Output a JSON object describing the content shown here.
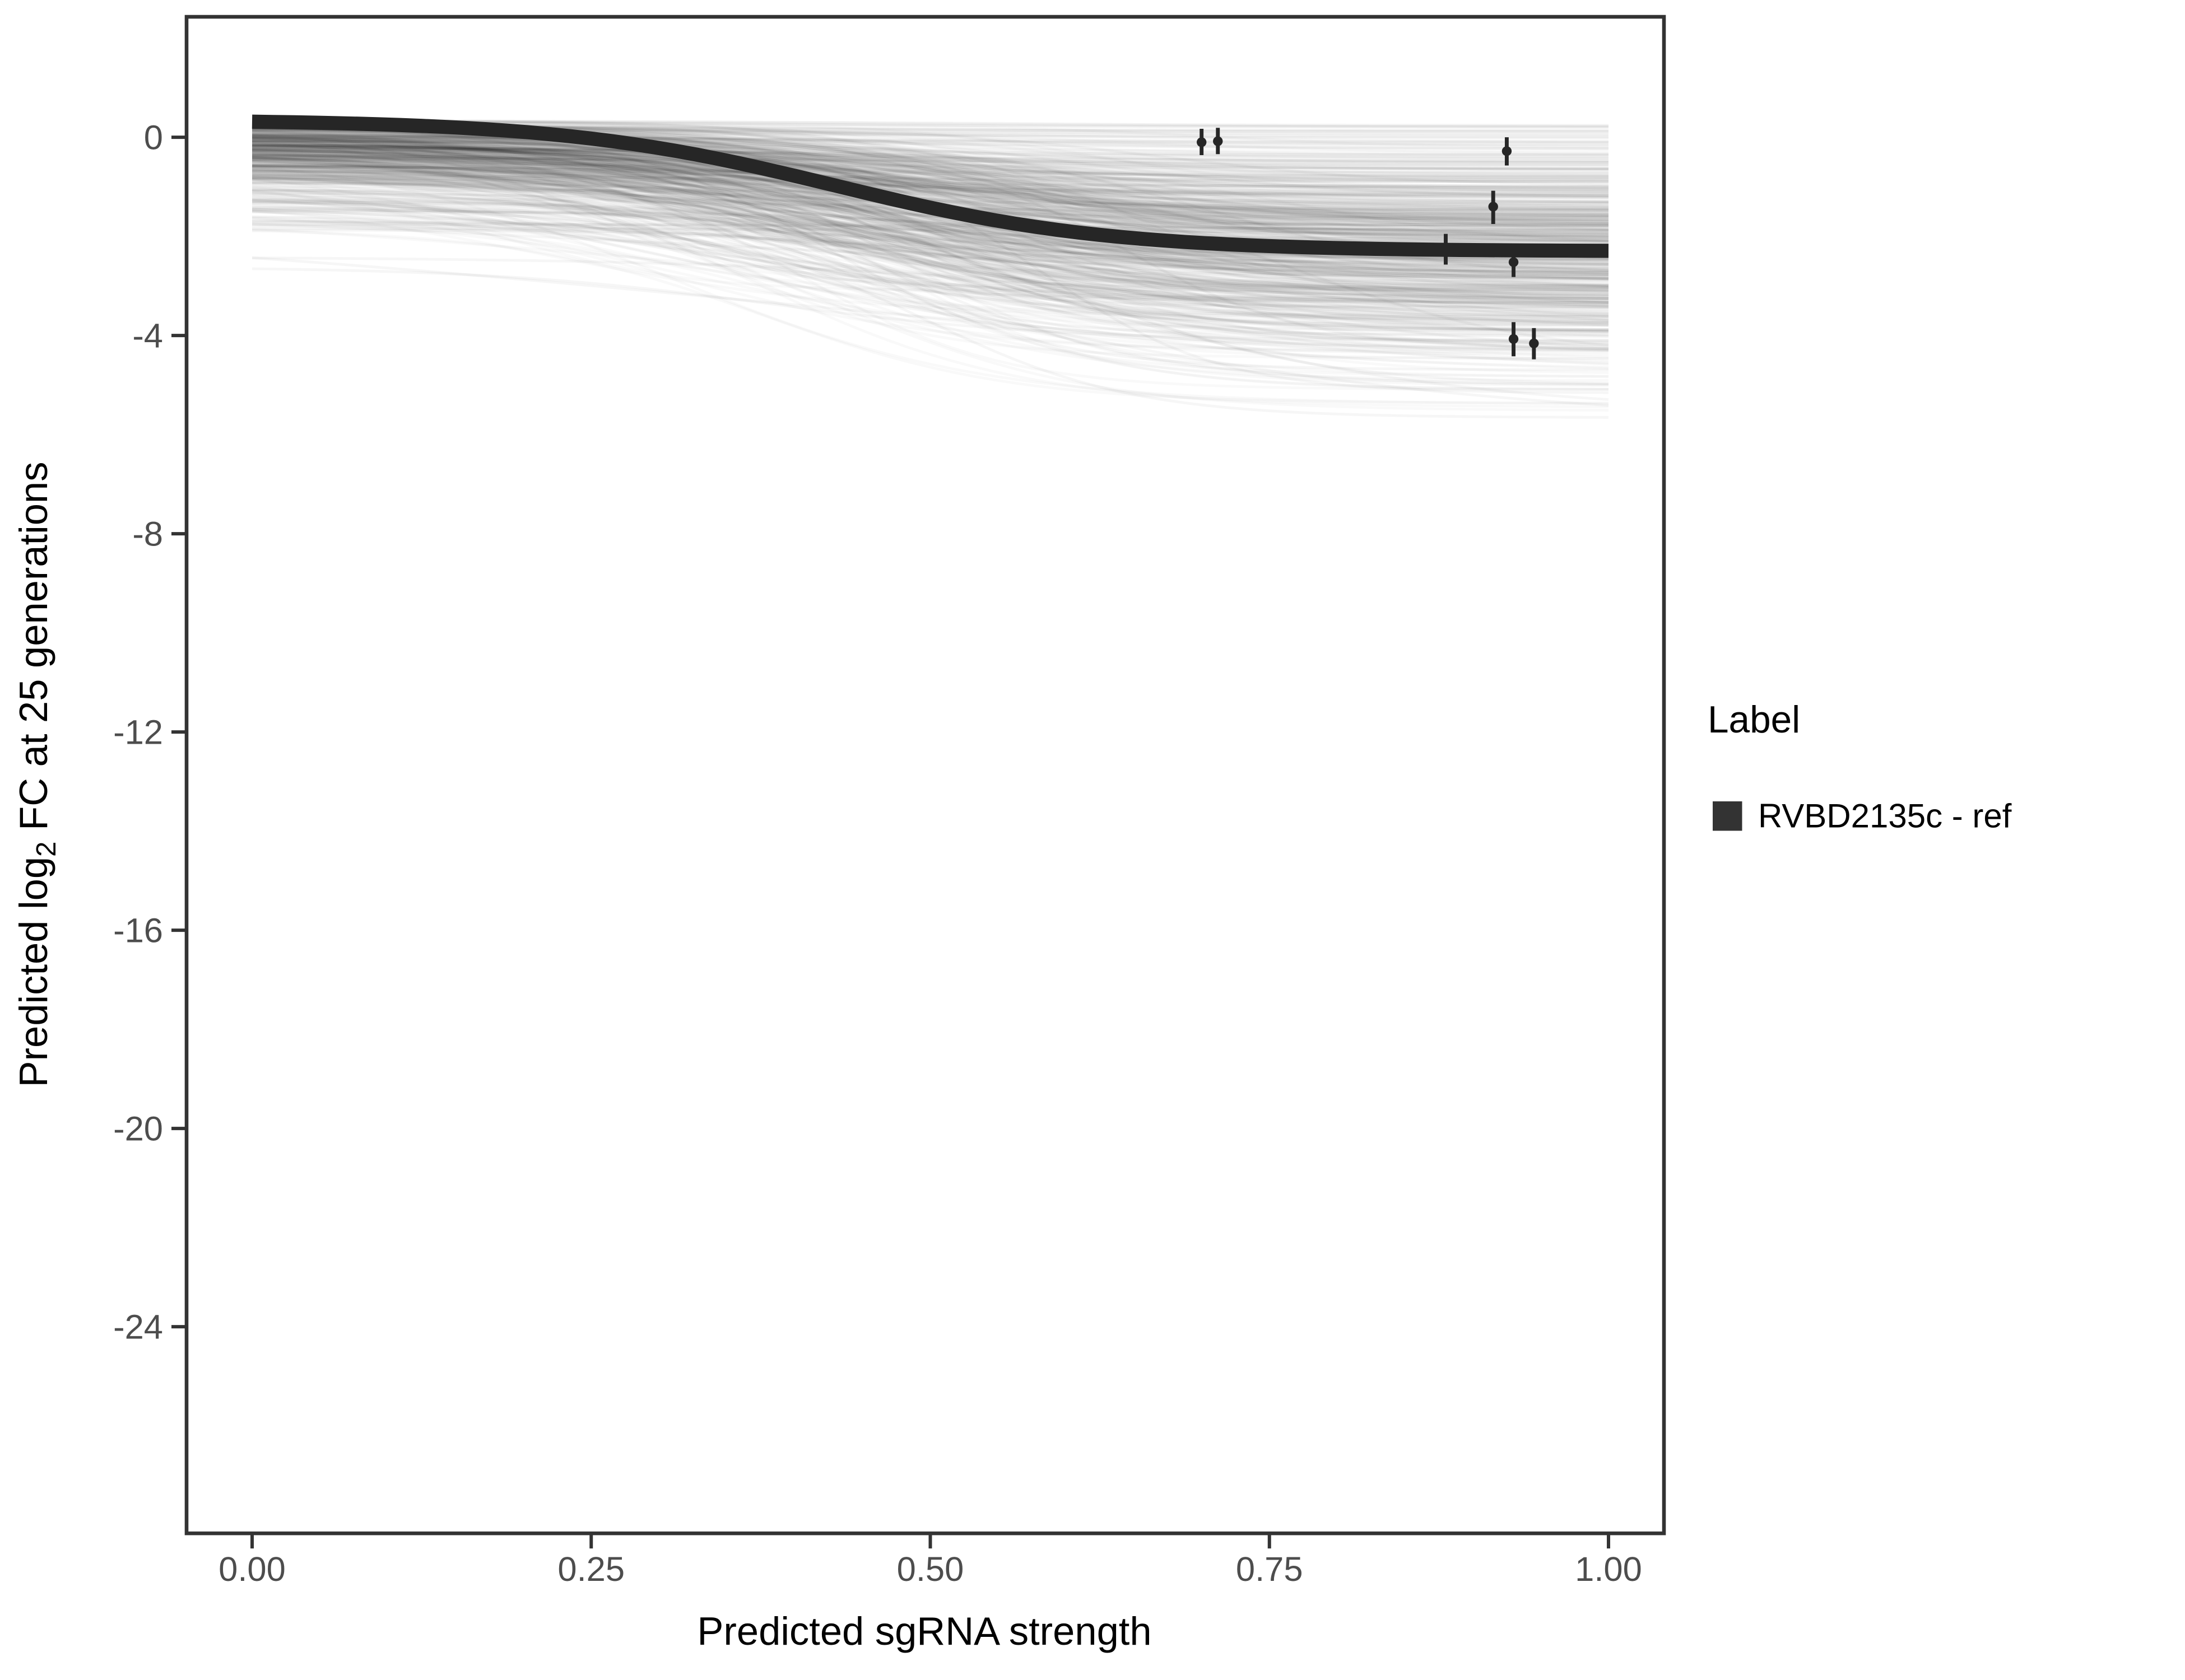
{
  "chart_data": {
    "type": "line",
    "title": "",
    "xlabel": "Predicted sgRNA strength",
    "ylabel": "Predicted log2 FC at 25 generations",
    "ylabel_parts": [
      "Predicted log",
      "2",
      " FC at 25 generations"
    ],
    "x_tick_labels": [
      "0.00",
      "0.25",
      "0.50",
      "0.75",
      "1.00"
    ],
    "x_tick_values": [
      0,
      0.25,
      0.5,
      0.75,
      1
    ],
    "y_tick_labels": [
      "0",
      "-4",
      "-8",
      "-12",
      "-16",
      "-20",
      "-24"
    ],
    "y_tick_values": [
      0,
      -4,
      -8,
      -12,
      -16,
      -20,
      -24
    ],
    "xlim": [
      -0.048,
      1.041
    ],
    "ylim": [
      -28.2,
      2.43
    ],
    "grid": false,
    "legend": {
      "position": "right",
      "title": "Label",
      "entries": [
        {
          "label": "RVBD2135c - ref",
          "key_color": "#333333",
          "key_shape": "square"
        }
      ]
    },
    "mean_curve": {
      "label": "RVBD2135c - ref",
      "model": "logistic",
      "upper_asymptote": 0.35,
      "lower_asymptote": -2.3,
      "midpoint": 0.43,
      "steepness": 10,
      "x_start": 0,
      "x_end": 1
    },
    "points": [
      {
        "x": 0.7,
        "y": -0.1,
        "ymin": -0.36,
        "ymax": 0.17
      },
      {
        "x": 0.712,
        "y": -0.08,
        "ymin": -0.34,
        "ymax": 0.19
      },
      {
        "x": 0.925,
        "y": -0.28,
        "ymin": -0.57,
        "ymax": 0.0
      },
      {
        "x": 0.915,
        "y": -1.4,
        "ymin": -1.75,
        "ymax": -1.08
      },
      {
        "x": 0.88,
        "y": -2.25,
        "ymin": -2.57,
        "ymax": -1.95
      },
      {
        "x": 0.93,
        "y": -2.52,
        "ymin": -2.82,
        "ymax": -2.3
      },
      {
        "x": 0.93,
        "y": -4.07,
        "ymin": -4.42,
        "ymax": -3.73
      },
      {
        "x": 0.945,
        "y": -4.16,
        "ymin": -4.48,
        "ymax": -3.85
      }
    ],
    "ensemble": {
      "kind": "posterior-draw-spaghetti",
      "curve_model": "logistic",
      "seed": 20135,
      "stroke_width": 1.6,
      "groups": [
        {
          "count": 500,
          "opacity": 0.025,
          "upper_base": 0.35,
          "upper_halfnormal_sigma": 0.75,
          "upper_min": -2.8,
          "drop_mean": 2.0,
          "drop_sd": 1.1,
          "drop_min": 0.1,
          "lower_min": -6.6,
          "midpoint_mean": 0.45,
          "midpoint_sd": 0.09,
          "midpoint_min": 0.2,
          "midpoint_max": 0.8,
          "steepness_mean": 10,
          "steepness_sd": 2.5,
          "steepness_min": 4,
          "steepness_max": 16
        },
        {
          "count": 90,
          "opacity": 0.035,
          "upper_base": 0.3,
          "upper_halfnormal_sigma": 1.2,
          "upper_min": -2.9,
          "drop_mean": 2.4,
          "drop_sd": 1.5,
          "drop_min": 0.1,
          "lower_min": -6.7,
          "midpoint_mean": 0.47,
          "midpoint_sd": 0.13,
          "midpoint_min": 0.2,
          "midpoint_max": 0.85,
          "steepness_mean": 9,
          "steepness_sd": 3,
          "steepness_min": 3,
          "steepness_max": 16
        }
      ]
    },
    "colors": {
      "background": "#FFFFFF",
      "panel_border": "#333333",
      "tick_marks": "#333333",
      "tick_label_text": "#4D4D4D",
      "axis_title_text": "#000000",
      "mean_curve": "#262626",
      "points": "#262626",
      "ensemble_strokes": "#000000",
      "legend_key": "#333333",
      "legend_text": "#000000"
    }
  }
}
